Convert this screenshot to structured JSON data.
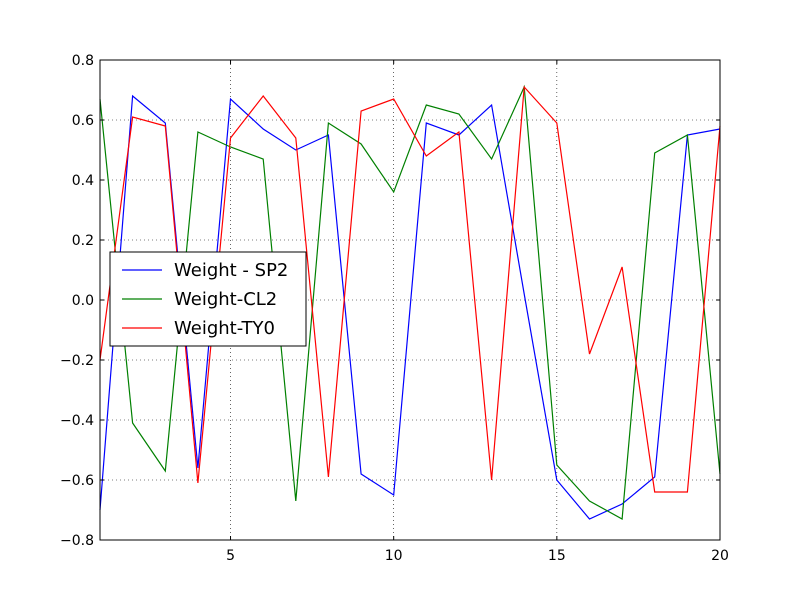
{
  "chart_data": {
    "type": "line",
    "title": "",
    "xlabel": "",
    "ylabel": "",
    "xlim": [
      1,
      20
    ],
    "ylim": [
      -0.8,
      0.8
    ],
    "grid": true,
    "legend_position": "center-left",
    "x_ticks": [
      5,
      10,
      15,
      20
    ],
    "x_tick_labels": [
      "5",
      "10",
      "15",
      "20"
    ],
    "y_ticks": [
      -0.8,
      -0.6,
      -0.4,
      -0.2,
      0.0,
      0.2,
      0.4,
      0.6,
      0.8
    ],
    "y_tick_labels": [
      "−0.8",
      "−0.6",
      "−0.4",
      "−0.2",
      "0.0",
      "0.2",
      "0.4",
      "0.6",
      "0.8"
    ],
    "x": [
      1,
      2,
      3,
      4,
      5,
      6,
      7,
      8,
      9,
      10,
      11,
      12,
      13,
      14,
      15,
      16,
      17,
      18,
      19,
      20
    ],
    "series": [
      {
        "name": "Weight - SP2",
        "color": "#0000ff",
        "values": [
          -0.7,
          0.68,
          0.59,
          -0.56,
          0.67,
          0.57,
          0.5,
          0.55,
          -0.58,
          -0.65,
          0.59,
          0.55,
          0.65,
          0.02,
          -0.6,
          -0.73,
          -0.68,
          -0.59,
          0.55,
          0.57
        ]
      },
      {
        "name": "Weight-CL2",
        "color": "#008000",
        "values": [
          0.67,
          -0.41,
          -0.57,
          0.56,
          0.51,
          0.47,
          -0.67,
          0.59,
          0.52,
          0.36,
          0.65,
          0.62,
          0.47,
          0.71,
          -0.55,
          -0.67,
          -0.73,
          0.49,
          0.55,
          -0.58
        ]
      },
      {
        "name": "Weight-TY0",
        "color": "#ff0000",
        "values": [
          -0.2,
          0.61,
          0.58,
          -0.61,
          0.54,
          0.68,
          0.54,
          -0.59,
          0.63,
          0.67,
          0.48,
          0.56,
          -0.6,
          0.71,
          0.59,
          -0.18,
          0.11,
          -0.64,
          -0.64,
          0.58
        ]
      }
    ]
  }
}
